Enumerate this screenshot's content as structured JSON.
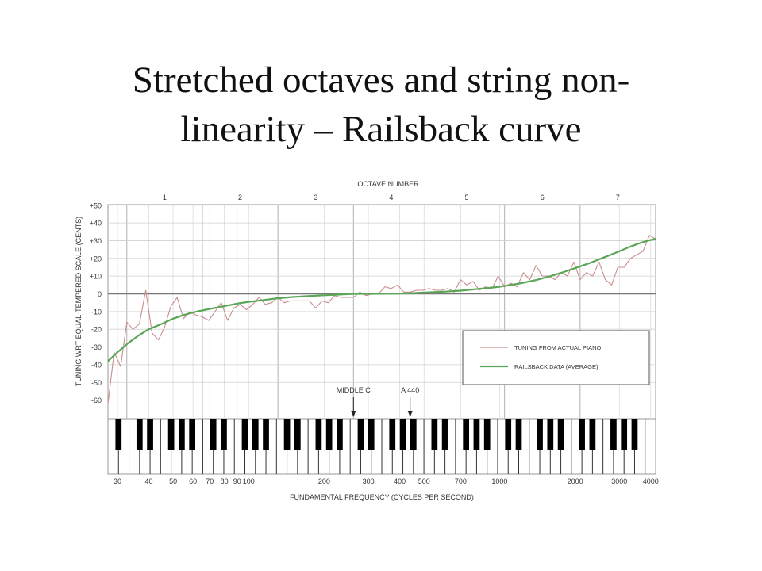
{
  "slide": {
    "title_line1": "Stretched octaves and string non-",
    "title_line2": "linearity – Railsback curve"
  },
  "chart_data": {
    "type": "line",
    "title": "OCTAVE NUMBER",
    "xlabel": "FUNDAMENTAL FREQUENCY (CYCLES PER SECOND)",
    "ylabel": "TUNING WRT EQUAL-TEMPERED SCALE (CENTS)",
    "x_scale": "log",
    "xlim": [
      27.5,
      4186
    ],
    "ylim": [
      -65,
      50
    ],
    "grid": true,
    "legend_position": "lower-right",
    "octave_labels": [
      "1",
      "2",
      "3",
      "4",
      "5",
      "6",
      "7"
    ],
    "y_ticks": [
      {
        "value": 50,
        "label": "+50"
      },
      {
        "value": 40,
        "label": "+40"
      },
      {
        "value": 30,
        "label": "+30"
      },
      {
        "value": 20,
        "label": "+20"
      },
      {
        "value": 10,
        "label": "+10"
      },
      {
        "value": 0,
        "label": "0"
      },
      {
        "value": -10,
        "label": "-10"
      },
      {
        "value": -20,
        "label": "-20"
      },
      {
        "value": -30,
        "label": "-30"
      },
      {
        "value": -40,
        "label": "-40"
      },
      {
        "value": -50,
        "label": "-50"
      },
      {
        "value": -60,
        "label": "-60"
      }
    ],
    "x_ticks": [
      {
        "value": 30,
        "label": "30"
      },
      {
        "value": 40,
        "label": "40"
      },
      {
        "value": 50,
        "label": "50"
      },
      {
        "value": 60,
        "label": "60"
      },
      {
        "value": 70,
        "label": "70"
      },
      {
        "value": 80,
        "label": "80"
      },
      {
        "value": 90,
        "label": "90"
      },
      {
        "value": 100,
        "label": "100"
      },
      {
        "value": 200,
        "label": "200"
      },
      {
        "value": 300,
        "label": "300"
      },
      {
        "value": 400,
        "label": "400"
      },
      {
        "value": 500,
        "label": "500"
      },
      {
        "value": 700,
        "label": "700"
      },
      {
        "value": 1000,
        "label": "1000"
      },
      {
        "value": 2000,
        "label": "2000"
      },
      {
        "value": 3000,
        "label": "3000"
      },
      {
        "value": 4000,
        "label": "4000"
      }
    ],
    "annotations": [
      {
        "label": "MIDDLE C",
        "x": 261.6
      },
      {
        "label": "A 440",
        "x": 440
      }
    ],
    "series": [
      {
        "name": "TUNING FROM ACTUAL PIANO",
        "color": "#c98c8c",
        "x": [
          27.5,
          29.1,
          30.9,
          32.7,
          34.6,
          36.7,
          38.9,
          41.2,
          43.7,
          46.2,
          49,
          51.9,
          55,
          58.3,
          61.7,
          65.4,
          69.3,
          73.4,
          77.8,
          82.4,
          87.3,
          92.5,
          98,
          103.8,
          110,
          116.5,
          123.5,
          130.8,
          138.6,
          146.8,
          155.6,
          164.8,
          174.6,
          185,
          196,
          207.7,
          220,
          233.1,
          246.9,
          261.6,
          277.2,
          293.7,
          311.1,
          329.6,
          349.2,
          370,
          392,
          415.3,
          440,
          466.2,
          493.9,
          523.3,
          554.4,
          587.3,
          622.3,
          659.3,
          698.5,
          740,
          784,
          830.6,
          880,
          932.3,
          987.8,
          1046.5,
          1108.7,
          1174.7,
          1244.5,
          1318.5,
          1396.9,
          1480,
          1568,
          1661.2,
          1760,
          1864.7,
          1975.5,
          2093,
          2217.5,
          2349.3,
          2489,
          2637,
          2793.8,
          2960,
          3136,
          3322.4,
          3520,
          3729.3,
          3951.1,
          4186
        ],
        "values": [
          -62,
          -33,
          -41,
          -16,
          -20,
          -17,
          2,
          -22,
          -26,
          -19,
          -7,
          -2,
          -14,
          -10,
          -12,
          -13,
          -15,
          -10,
          -5,
          -15,
          -8,
          -6,
          -9,
          -6,
          -2,
          -6,
          -5,
          -2,
          -5,
          -4,
          -4,
          -4,
          -4,
          -8,
          -4,
          -5,
          -1,
          -2,
          -2,
          -2,
          1,
          -1,
          0,
          0,
          4,
          3,
          5,
          1,
          1,
          2,
          2,
          3,
          2,
          2,
          3,
          1,
          8,
          5,
          7,
          2,
          4,
          3,
          10,
          4,
          6,
          4,
          12,
          8,
          16,
          10,
          10,
          8,
          12,
          10,
          18,
          8,
          12,
          10,
          18,
          8,
          5,
          15,
          15,
          20,
          22,
          24,
          33,
          31
        ]
      },
      {
        "name": "RAILSBACK DATA (AVERAGE)",
        "color": "#5aa657",
        "x": [
          27.5,
          30,
          33,
          36,
          40,
          45,
          50,
          55,
          62,
          70,
          80,
          90,
          100,
          115,
          130,
          150,
          175,
          200,
          230,
          261.6,
          300,
          350,
          400,
          450,
          500,
          600,
          700,
          800,
          1000,
          1200,
          1400,
          1600,
          1800,
          2000,
          2300,
          2600,
          3000,
          3300,
          3600,
          3900,
          4186
        ],
        "values": [
          -38,
          -33,
          -28,
          -24,
          -20,
          -17,
          -14,
          -12,
          -10,
          -8.5,
          -7,
          -5.5,
          -4.5,
          -3.5,
          -2.5,
          -1.8,
          -1.2,
          -0.8,
          -0.4,
          0,
          0,
          0.1,
          0.2,
          0.4,
          0.7,
          1.2,
          1.8,
          2.6,
          4,
          5.8,
          7.8,
          10,
          12.3,
          14.5,
          17.5,
          20.5,
          24,
          26.5,
          28.5,
          30,
          31
        ]
      }
    ]
  }
}
